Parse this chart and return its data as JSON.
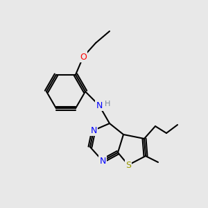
{
  "bg_color": "#e8e8e8",
  "bond_color": "#000000",
  "bond_width": 1.5,
  "atom_colors": {
    "N": "#0000ff",
    "O": "#ff0000",
    "S": "#999900",
    "H": "#778899",
    "C": "#000000"
  },
  "font_size": 9,
  "font_size_small": 8
}
